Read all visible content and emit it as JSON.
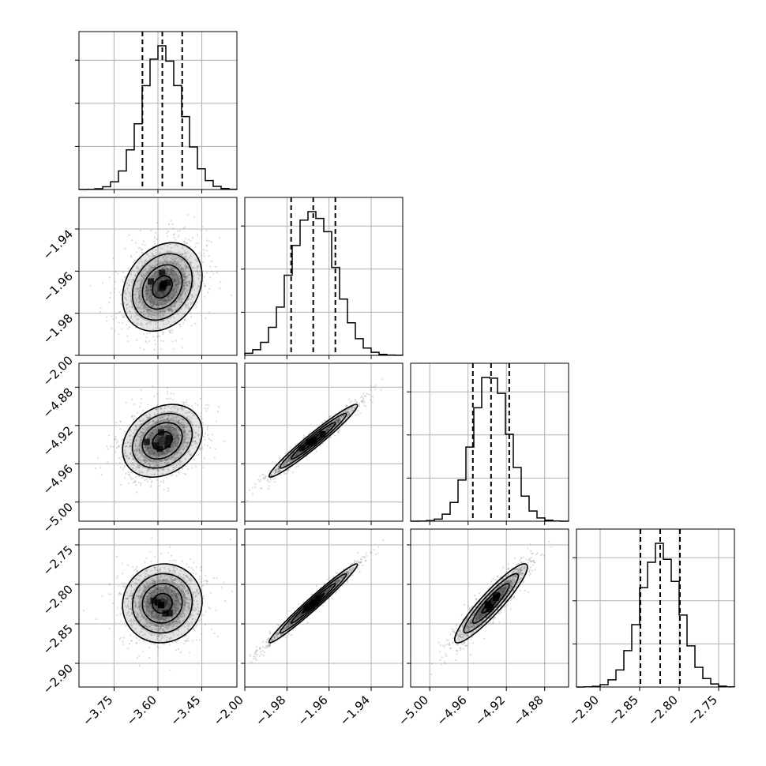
{
  "chart_data": {
    "type": "corner",
    "grid": true,
    "parameters": [
      {
        "index": 0,
        "range": [
          -3.87,
          -3.33
        ],
        "ticks": [
          "−3.75",
          "−3.60",
          "−3.45"
        ],
        "tick_values": [
          -3.75,
          -3.6,
          -3.45
        ],
        "mean": -3.585,
        "sd": 0.068,
        "quantiles": [
          -3.653,
          -3.585,
          -3.517
        ]
      },
      {
        "index": 1,
        "range": [
          -2.0,
          -1.925
        ],
        "ticks": [
          "−2.00",
          "−1.98",
          "−1.96",
          "−1.94"
        ],
        "tick_values": [
          -2.0,
          -1.98,
          -1.96,
          -1.94
        ],
        "mean": -1.9675,
        "sd": 0.0105,
        "quantiles": [
          -1.978,
          -1.9675,
          -1.957
        ]
      },
      {
        "index": 2,
        "range": [
          -5.02,
          -4.855
        ],
        "ticks": [
          "−5.00",
          "−4.96",
          "−4.92",
          "−4.88"
        ],
        "tick_values": [
          -5.0,
          -4.96,
          -4.92,
          -4.88
        ],
        "mean": -4.936,
        "sd": 0.019,
        "quantiles": [
          -4.955,
          -4.936,
          -4.917
        ]
      },
      {
        "index": 3,
        "range": [
          -2.93,
          -2.73
        ],
        "ticks": [
          "−2.90",
          "−2.85",
          "−2.80",
          "−2.75"
        ],
        "tick_values": [
          -2.9,
          -2.85,
          -2.8,
          -2.75
        ],
        "mean": -2.824,
        "sd": 0.025,
        "quantiles": [
          -2.849,
          -2.824,
          -2.799
        ]
      }
    ],
    "y_tick_labels": {
      "1": [
        "−1.94",
        "−1.96",
        "−1.98",
        "−2.00"
      ],
      "2": [
        "−4.88",
        "−4.92",
        "−4.96",
        "−5.00"
      ],
      "3": [
        "−2.75",
        "−2.80",
        "−2.85",
        "−2.90"
      ]
    },
    "correlations": {
      "0-1": 0.25,
      "0-2": 0.25,
      "0-3": 0.05,
      "1-2": 0.97,
      "1-3": 0.98,
      "2-3": 0.92
    },
    "histogram_bins": 20,
    "contour_levels": 3,
    "colors": {
      "points": "#808080",
      "contour": "#000000",
      "density": "#000000"
    }
  }
}
